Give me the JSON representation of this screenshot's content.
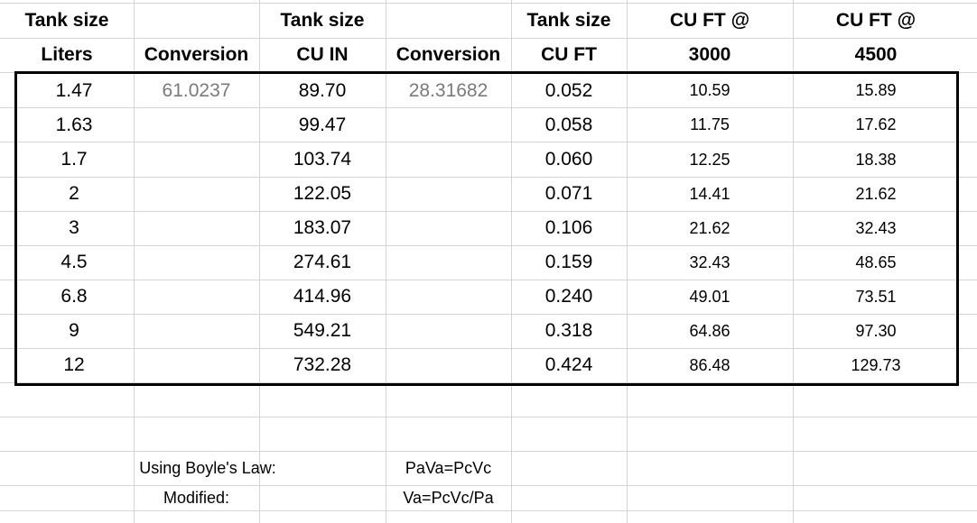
{
  "headers": {
    "row1": [
      "Tank size",
      "",
      "Tank size",
      "",
      "Tank size",
      "CU FT @",
      "CU FT @"
    ],
    "row2": [
      "Liters",
      "Conversion",
      "CU IN",
      "Conversion",
      "CU FT",
      "3000",
      "4500"
    ]
  },
  "rows": [
    [
      "1.47",
      "61.0237",
      "89.70",
      "28.31682",
      "0.052",
      "10.59",
      "15.89"
    ],
    [
      "1.63",
      "",
      "99.47",
      "",
      "0.058",
      "11.75",
      "17.62"
    ],
    [
      "1.7",
      "",
      "103.74",
      "",
      "0.060",
      "12.25",
      "18.38"
    ],
    [
      "2",
      "",
      "122.05",
      "",
      "0.071",
      "14.41",
      "21.62"
    ],
    [
      "3",
      "",
      "183.07",
      "",
      "0.106",
      "21.62",
      "32.43"
    ],
    [
      "4.5",
      "",
      "274.61",
      "",
      "0.159",
      "32.43",
      "48.65"
    ],
    [
      "6.8",
      "",
      "414.96",
      "",
      "0.240",
      "49.01",
      "73.51"
    ],
    [
      "9",
      "",
      "549.21",
      "",
      "0.318",
      "64.86",
      "97.30"
    ],
    [
      "12",
      "",
      "732.28",
      "",
      "0.424",
      "86.48",
      "129.73"
    ]
  ],
  "notes": {
    "boyle_label": "Using Boyle's Law:",
    "boyle_formula": "PaVa=PcVc",
    "modified_label": "Modified:",
    "modified_formula": "Va=PcVc/Pa"
  }
}
